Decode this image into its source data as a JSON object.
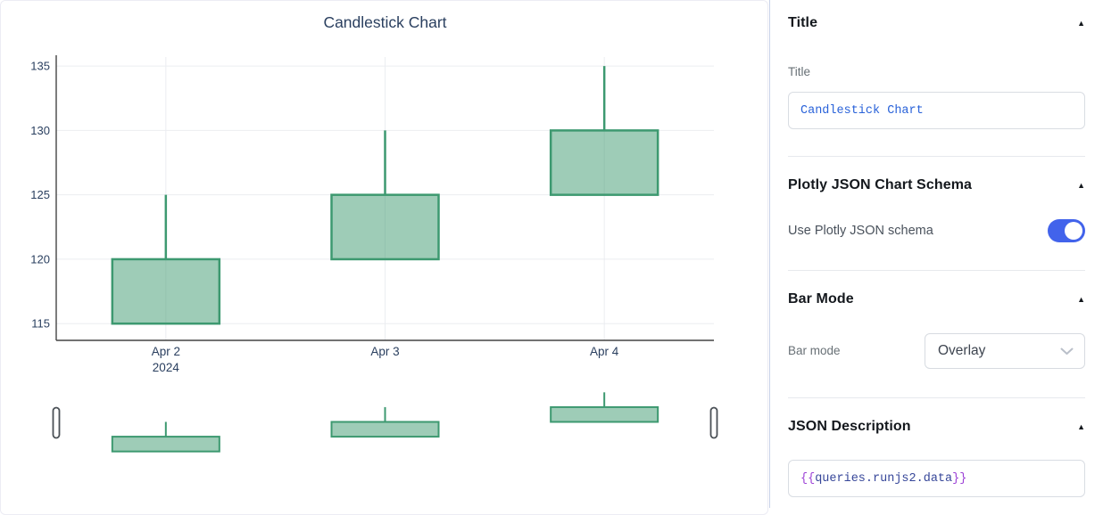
{
  "chart_data": {
    "type": "candlestick",
    "title": "Candlestick Chart",
    "categories": [
      "Apr 2",
      "Apr 3",
      "Apr 4"
    ],
    "x_year_label": "2024",
    "ohlc": [
      {
        "x": "Apr 2, 2024",
        "open": 115,
        "high": 125,
        "low": 115,
        "close": 120
      },
      {
        "x": "Apr 3, 2024",
        "open": 120,
        "high": 130,
        "low": 120,
        "close": 125
      },
      {
        "x": "Apr 4, 2024",
        "open": 125,
        "high": 135,
        "low": 125,
        "close": 130
      }
    ],
    "y_ticks": [
      115,
      120,
      125,
      130,
      135
    ],
    "ylim": [
      113.7,
      135.7
    ],
    "grid": true,
    "legend": false,
    "rangeslider": true,
    "colors": {
      "increasing": "#3D9970",
      "fill_opacity": 0.5,
      "grid": "#ebedf1",
      "axis": "#444444",
      "tick_text": "#2a3f5f",
      "title_text": "#2a3f5f",
      "handle_fill": "#ffffff",
      "handle_stroke": "#4a5056"
    }
  },
  "panel": {
    "collapse_icon": "▲",
    "sections": {
      "title": {
        "header": "Title",
        "field_label": "Title",
        "value": "Candlestick Chart"
      },
      "schema": {
        "header": "Plotly JSON Chart Schema",
        "toggle_label": "Use Plotly JSON schema",
        "toggle_on": true
      },
      "bar_mode": {
        "header": "Bar Mode",
        "field_label": "Bar mode",
        "value": "Overlay"
      },
      "json_description": {
        "header": "JSON Description",
        "value_open": "{{",
        "value_body": "queries.runjs2.data",
        "value_close": "}}"
      }
    },
    "colors": {
      "toggle_on": "#4263eb",
      "code_text": "#2962d9",
      "brace": "#9c40d6",
      "code_body": "#364699",
      "chevron": "#b9bfc9"
    }
  }
}
